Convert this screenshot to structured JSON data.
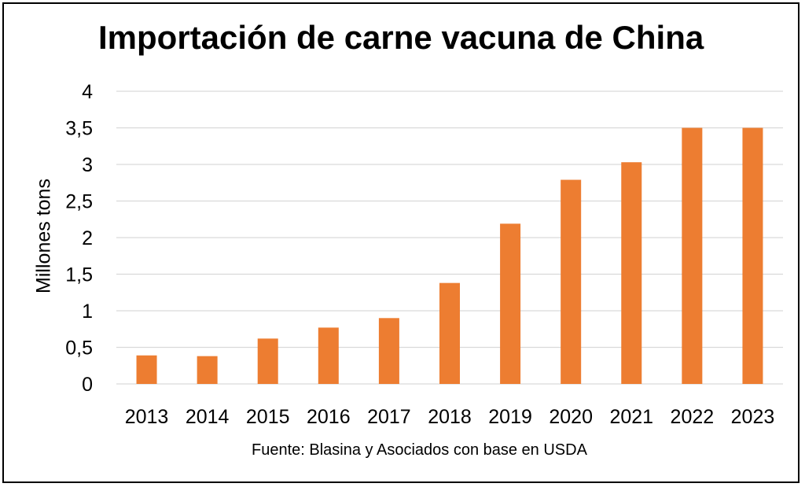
{
  "chart_data": {
    "type": "bar",
    "title": "Importación de carne vacuna de China",
    "xlabel": "",
    "ylabel": "Millones tons",
    "categories": [
      "2013",
      "2014",
      "2015",
      "2016",
      "2017",
      "2018",
      "2019",
      "2020",
      "2021",
      "2022",
      "2023"
    ],
    "values": [
      0.39,
      0.38,
      0.62,
      0.77,
      0.9,
      1.38,
      2.19,
      2.79,
      3.03,
      3.5,
      3.5
    ],
    "ylim": [
      0,
      4
    ],
    "yticks": [
      "0",
      "0,5",
      "1",
      "1,5",
      "2",
      "2,5",
      "3",
      "3,5",
      "4"
    ],
    "grid": true,
    "legend": "none",
    "bar_color": "#ED7D31",
    "grid_color": "#D9D9D9",
    "source": "Fuente: Blasina y Asociados con base en USDA"
  }
}
